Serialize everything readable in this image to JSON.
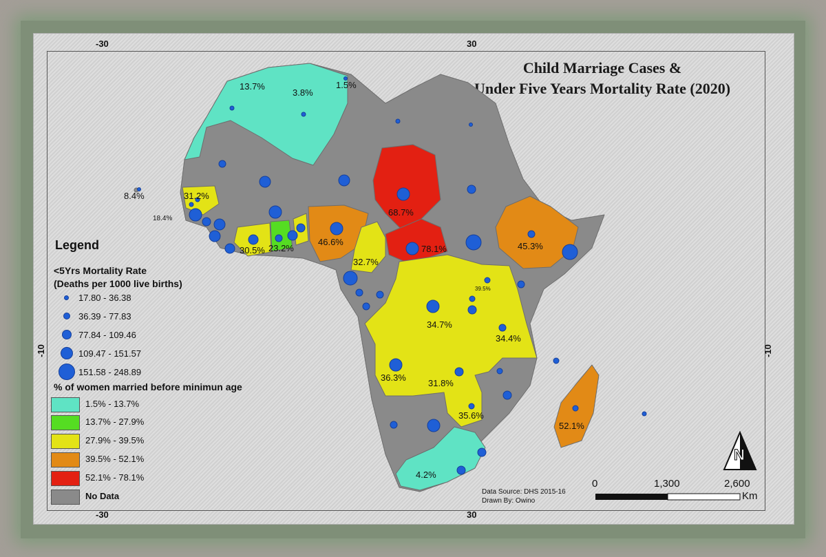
{
  "title_line1": "Child Marriage Cases &",
  "title_line2": "Under Five Years Mortality Rate (2020)",
  "graticule": {
    "top_left": "-30",
    "top_right": "30",
    "bottom_left": "-30",
    "bottom_right": "30",
    "left": "-10",
    "right": "-10"
  },
  "legend": {
    "heading": "Legend",
    "mortality_title_1": "<5Yrs Mortality Rate",
    "mortality_title_2": "(Deaths per 1000 live births)",
    "mortality_classes": [
      "17.80 - 36.38",
      "36.39 - 77.83",
      "77.84 - 109.46",
      "109.47 - 151.57",
      "151.58 - 248.89"
    ],
    "marriage_title": "% of women married before minimun age",
    "marriage_classes": [
      {
        "label": "1.5% - 13.7%",
        "color": "#5fe3c4"
      },
      {
        "label": "13.7% - 27.9%",
        "color": "#55dd22"
      },
      {
        "label": "27.9% - 39.5%",
        "color": "#e3e316"
      },
      {
        "label": "39.5% - 52.1%",
        "color": "#e28a16"
      },
      {
        "label": "52.1% - 78.1%",
        "color": "#e32012"
      },
      {
        "label": "No Data",
        "color": "#8a8a8a"
      }
    ]
  },
  "colors": {
    "no_data": "#8a8a8a",
    "teal": "#5fe3c4",
    "green": "#55dd22",
    "yellow": "#e3e316",
    "orange": "#e28a16",
    "red": "#e32012",
    "dot": "#1f5fd6"
  },
  "country_labels": {
    "morocco": "13.7%",
    "algeria": "3.8%",
    "tunisia": "1.5%",
    "cape_verde": "8.4%",
    "senegal": "31.2%",
    "gambia": "18.4%",
    "ivory_coast": "30.5%",
    "ghana": "23.2%",
    "nigeria": "46.6%",
    "chad": "68.7%",
    "car": "78.1%",
    "cameroon": "32.7%",
    "ethiopia": "45.3%",
    "rwanda": "39.5%",
    "drc": "34.7%",
    "tanzania": "34.4%",
    "angola": "36.3%",
    "zambia": "31.8%",
    "zimbabwe": "35.6%",
    "madagascar": "52.1%",
    "south_africa": "4.2%"
  },
  "source_line1": "Data Source: DHS 2015-16",
  "source_line2": "Drawn By: Owino",
  "scale": {
    "label_0": "0",
    "label_1": "1,300",
    "label_2": "2,600",
    "unit": "Km"
  },
  "north_letter": "N"
}
